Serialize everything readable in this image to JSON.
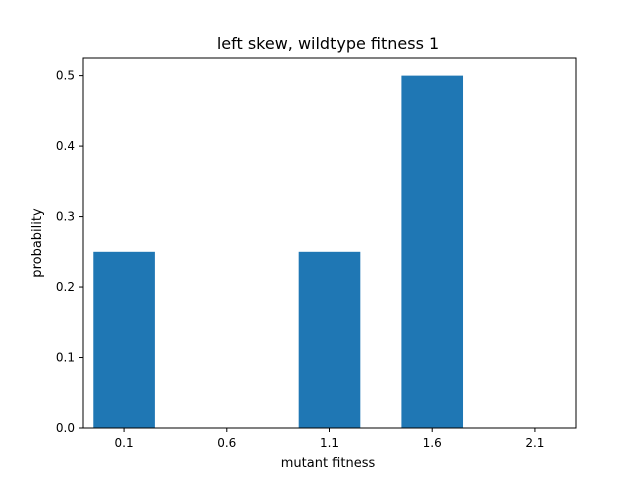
{
  "chart_data": {
    "type": "bar",
    "title": "left skew, wildtype fitness 1",
    "xlabel": "mutant fitness",
    "ylabel": "probability",
    "categories": [
      "0.1",
      "0.6",
      "1.1",
      "1.6",
      "2.1"
    ],
    "x": [
      0.1,
      0.6,
      1.1,
      1.6,
      2.1
    ],
    "values": [
      0.25,
      0,
      0.25,
      0.5,
      0
    ],
    "xlim": [
      -0.1,
      2.3
    ],
    "ylim": [
      0,
      0.525
    ],
    "yticks": [
      0.0,
      0.1,
      0.2,
      0.3,
      0.4,
      0.5
    ],
    "ytick_labels": [
      "0.0",
      "0.1",
      "0.2",
      "0.3",
      "0.4",
      "0.5"
    ],
    "bar_width": 0.3,
    "bar_color": "#1f77b4",
    "grid": false,
    "legend": "none"
  }
}
